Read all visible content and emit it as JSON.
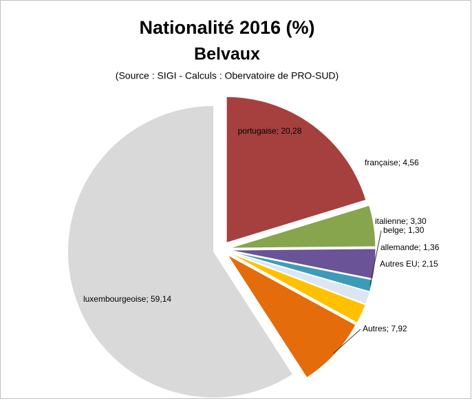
{
  "chart_data": {
    "type": "pie",
    "title": "Nationalité 2016 (%)",
    "subtitle": "Belvaux",
    "note": "(Source : SIGI - Calculs : Obervatoire de PRO-SUD)",
    "categories": [
      "portugaise",
      "française",
      "italienne",
      "belge",
      "allemande",
      "Autres EU",
      "Autres",
      "luxembourgeoise"
    ],
    "values": [
      20.28,
      4.56,
      3.3,
      1.3,
      1.36,
      2.15,
      7.92,
      59.14
    ],
    "value_labels": [
      "portugaise; 20,28",
      "française; 4,56",
      "italienne; 3,30",
      "belge; 1,30",
      "allemande; 1,36",
      "Autres EU; 2,15",
      "Autres; 7,92",
      "luxembourgeoise; 59,14"
    ],
    "colors": [
      "#a5403f",
      "#86a54c",
      "#6a5396",
      "#3d9bb7",
      "#dce6f2",
      "#ffc000",
      "#e46c0a",
      "#d9d9d9"
    ]
  }
}
